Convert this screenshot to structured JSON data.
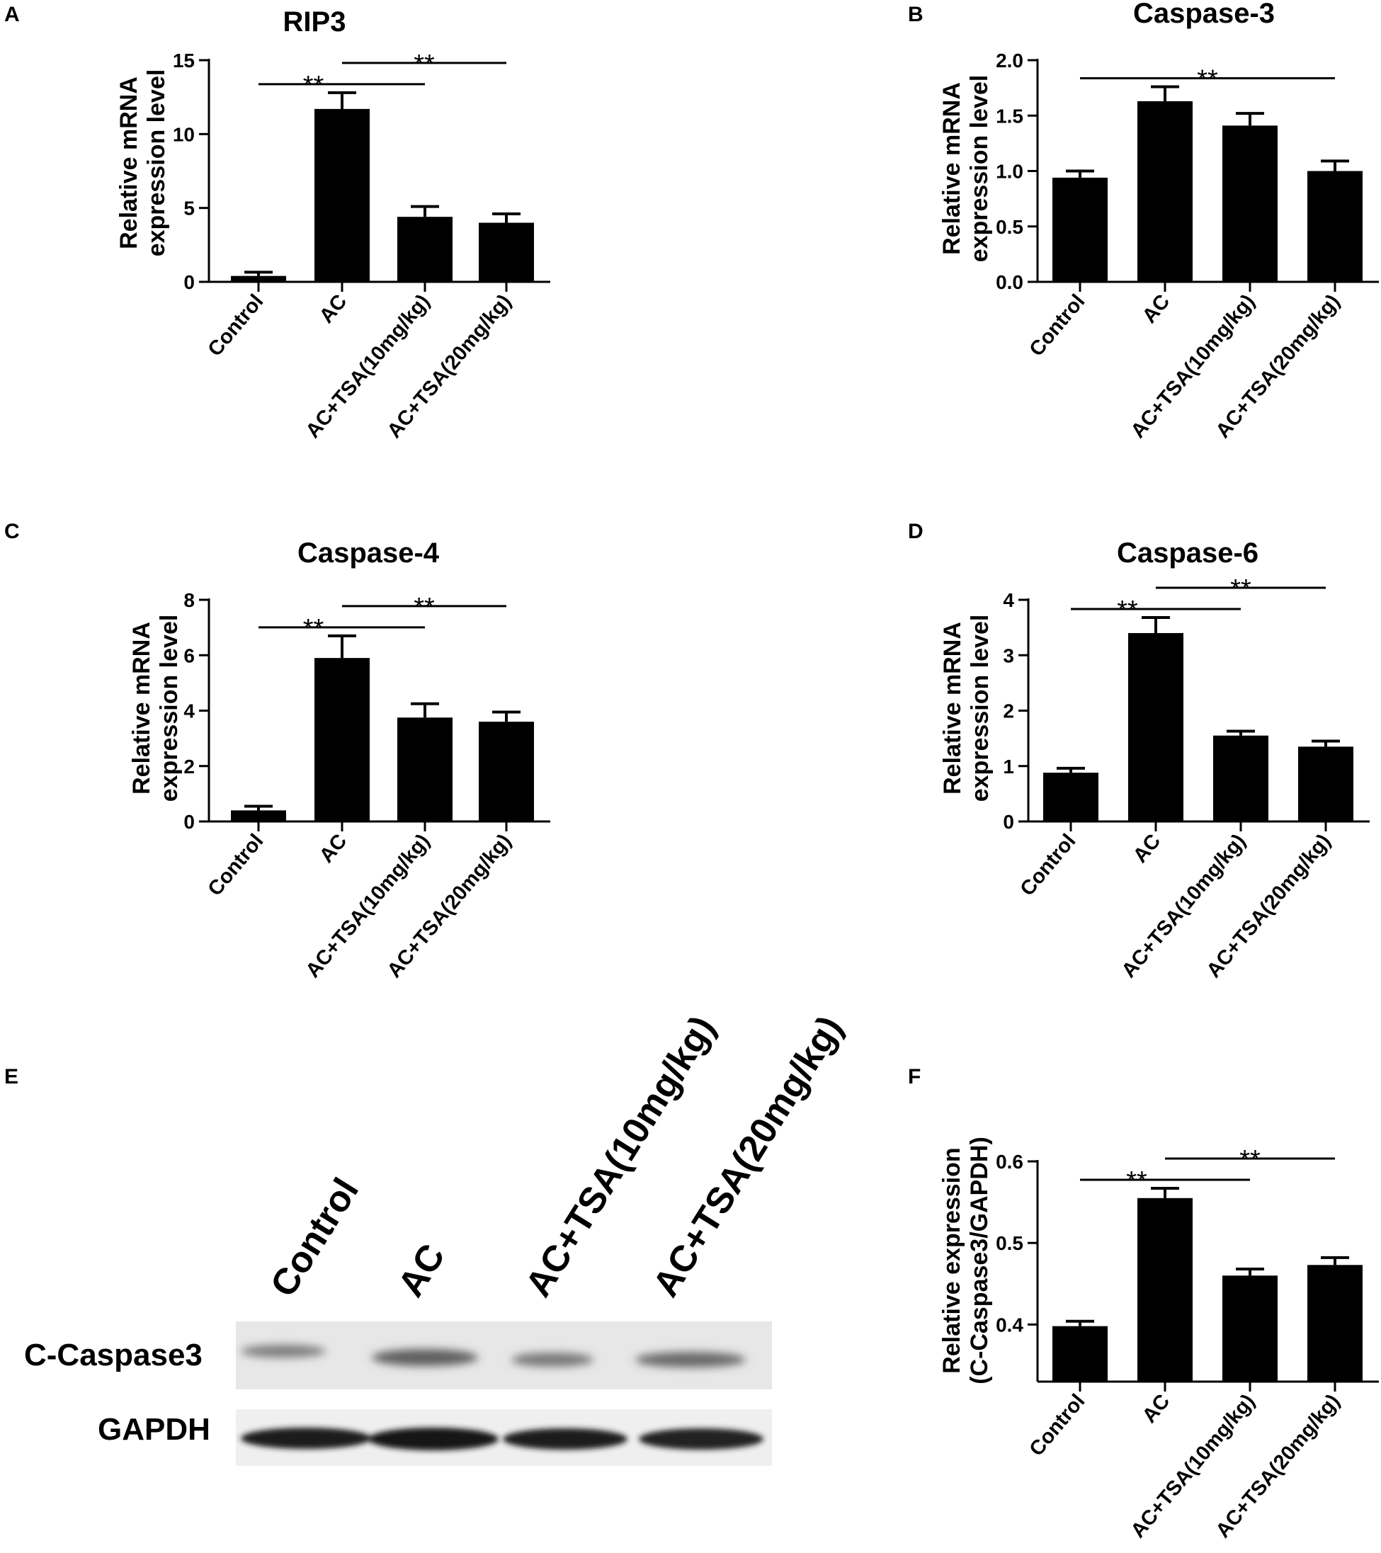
{
  "panels": [
    {
      "letter": "A",
      "chart_data": {
        "type": "bar",
        "title": "RIP3",
        "ylabel": [
          "Relative mRNA",
          "expression level"
        ],
        "categories": [
          "Control",
          "AC",
          "AC+TSA(10mg/kg)",
          "AC+TSA(20mg/kg)"
        ],
        "values": [
          0.4,
          11.7,
          4.4,
          4.0
        ],
        "errors": [
          0.25,
          1.1,
          0.7,
          0.6
        ],
        "ylim": [
          0,
          15
        ],
        "yticks": [
          "0",
          "5",
          "10",
          "15"
        ],
        "significance": [
          {
            "from": 0,
            "to": 2,
            "level": 0,
            "label": "**"
          },
          {
            "from": 1,
            "to": 3,
            "level": 1,
            "label": "**"
          }
        ]
      }
    },
    {
      "letter": "B",
      "chart_data": {
        "type": "bar",
        "title": "Caspase-3",
        "ylabel": [
          "Relative mRNA",
          "expression level"
        ],
        "categories": [
          "Control",
          "AC",
          "AC+TSA(10mg/kg)",
          "AC+TSA(20mg/kg)"
        ],
        "values": [
          0.94,
          1.63,
          1.41,
          1.0
        ],
        "errors": [
          0.06,
          0.13,
          0.11,
          0.09
        ],
        "ylim": [
          0,
          2.0
        ],
        "yticks": [
          "0.0",
          "0.5",
          "1.0",
          "1.5",
          "2.0"
        ],
        "significance": [
          {
            "from": 0,
            "to": 3,
            "level": 0,
            "label": "**"
          }
        ]
      }
    },
    {
      "letter": "C",
      "chart_data": {
        "type": "bar",
        "title": "Caspase-4",
        "ylabel": [
          "Relative mRNA",
          "expression level"
        ],
        "categories": [
          "Control",
          "AC",
          "AC+TSA(10mg/kg)",
          "AC+TSA(20mg/kg)"
        ],
        "values": [
          0.4,
          5.9,
          3.75,
          3.6
        ],
        "errors": [
          0.15,
          0.8,
          0.5,
          0.35
        ],
        "ylim": [
          0,
          8
        ],
        "yticks": [
          "0",
          "2",
          "4",
          "6",
          "8"
        ],
        "significance": [
          {
            "from": 0,
            "to": 2,
            "level": 0,
            "label": "**"
          },
          {
            "from": 1,
            "to": 3,
            "level": 1,
            "label": "**"
          }
        ]
      }
    },
    {
      "letter": "D",
      "chart_data": {
        "type": "bar",
        "title": "Caspase-6",
        "ylabel": [
          "Relative mRNA",
          "expression level"
        ],
        "categories": [
          "Control",
          "AC",
          "AC+TSA(10mg/kg)",
          "AC+TSA(20mg/kg)"
        ],
        "values": [
          0.88,
          3.4,
          1.55,
          1.35
        ],
        "errors": [
          0.08,
          0.28,
          0.08,
          0.1
        ],
        "ylim": [
          0,
          4
        ],
        "yticks": [
          "0",
          "1",
          "2",
          "3",
          "4"
        ],
        "significance": [
          {
            "from": 0,
            "to": 2,
            "level": 0,
            "label": "**"
          },
          {
            "from": 1,
            "to": 3,
            "level": 1,
            "label": "**"
          }
        ]
      }
    },
    {
      "letter": "F",
      "chart_data": {
        "type": "bar",
        "title": "",
        "ylabel": [
          "Relative expression",
          "(C-Caspase3/GAPDH)"
        ],
        "categories": [
          "Control",
          "AC",
          "AC+TSA(10mg/kg)",
          "AC+TSA(20mg/kg)"
        ],
        "values": [
          0.398,
          0.555,
          0.46,
          0.473
        ],
        "errors": [
          0.006,
          0.012,
          0.008,
          0.009
        ],
        "ylim": [
          0.33,
          0.6
        ],
        "yticks": [
          "0.4",
          "0.5",
          "0.6"
        ],
        "significance": [
          {
            "from": 0,
            "to": 2,
            "level": 0,
            "label": "**"
          },
          {
            "from": 1,
            "to": 3,
            "level": 1,
            "label": "**"
          }
        ]
      }
    }
  ],
  "blot": {
    "letter": "E",
    "lanes": [
      "Control",
      "AC",
      "AC+TSA(10mg/kg)",
      "AC+TSA(20mg/kg)"
    ],
    "rows": [
      "C-Caspase3",
      "GAPDH"
    ]
  }
}
